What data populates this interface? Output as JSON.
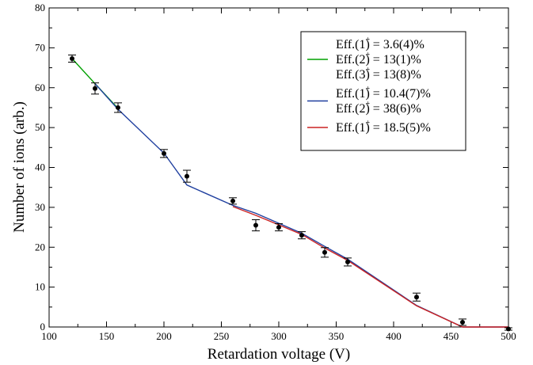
{
  "chart_data": {
    "type": "line",
    "xlabel": "Retardation voltage (V)",
    "ylabel": "Number of ions (arb.)",
    "xlim": [
      100,
      500
    ],
    "ylim": [
      0,
      80
    ],
    "x_ticks": [
      "100",
      "150",
      "200",
      "250",
      "300",
      "350",
      "400",
      "450",
      "500"
    ],
    "y_ticks": [
      "0",
      "10",
      "20",
      "30",
      "40",
      "50",
      "60",
      "70",
      "80"
    ],
    "grid": false,
    "legend_position": "top-right",
    "data_points": {
      "x": [
        120,
        140,
        160,
        200,
        220,
        260,
        280,
        300,
        320,
        340,
        360,
        420,
        460,
        500
      ],
      "y": [
        67.3,
        59.8,
        55.0,
        43.5,
        37.8,
        31.6,
        25.5,
        25.0,
        23.0,
        18.7,
        16.3,
        7.5,
        1.2,
        -0.5
      ],
      "err": [
        0.9,
        1.4,
        1.2,
        1.0,
        1.5,
        0.8,
        1.4,
        0.9,
        0.9,
        1.2,
        1.0,
        1.0,
        0.8,
        0.3
      ]
    },
    "series": [
      {
        "color": "#00a000",
        "x": [
          120,
          140,
          160
        ],
        "y": [
          67.3,
          61.0,
          54.8
        ],
        "legend": [
          {
            "pre": "Eff.(",
            "sup": "1",
            "mid": "+",
            "post": ") = 3.6(4)%"
          },
          {
            "pre": "Eff.(",
            "sup": "2",
            "mid": "+",
            "post": ") = 13(1)%"
          },
          {
            "pre": "Eff.(",
            "sup": "3",
            "mid": "+",
            "post": ") = 13(8)%"
          }
        ]
      },
      {
        "color": "#1f3f9f",
        "x": [
          140,
          160,
          200,
          220,
          260,
          280,
          300,
          320,
          340,
          360,
          420,
          460,
          500
        ],
        "y": [
          61.0,
          54.6,
          43.6,
          35.6,
          30.5,
          28.5,
          26.0,
          23.5,
          20.2,
          17.0,
          5.4,
          0.0,
          0.0
        ],
        "legend": [
          {
            "pre": "Eff.(",
            "sup": "1",
            "mid": "+",
            "post": ") = 10.4(7)%"
          },
          {
            "pre": "Eff.(",
            "sup": "2",
            "mid": "+",
            "post": ") = 38(6)%"
          }
        ]
      },
      {
        "color": "#cc2222",
        "x": [
          260,
          280,
          300,
          320,
          340,
          360,
          420,
          460,
          500
        ],
        "y": [
          30.2,
          28.0,
          25.6,
          23.2,
          19.8,
          16.7,
          5.3,
          0.0,
          0.0
        ],
        "legend": [
          {
            "pre": "Eff.(",
            "sup": "1",
            "mid": "+",
            "post": ") = 18.5(5)%"
          }
        ]
      }
    ]
  }
}
